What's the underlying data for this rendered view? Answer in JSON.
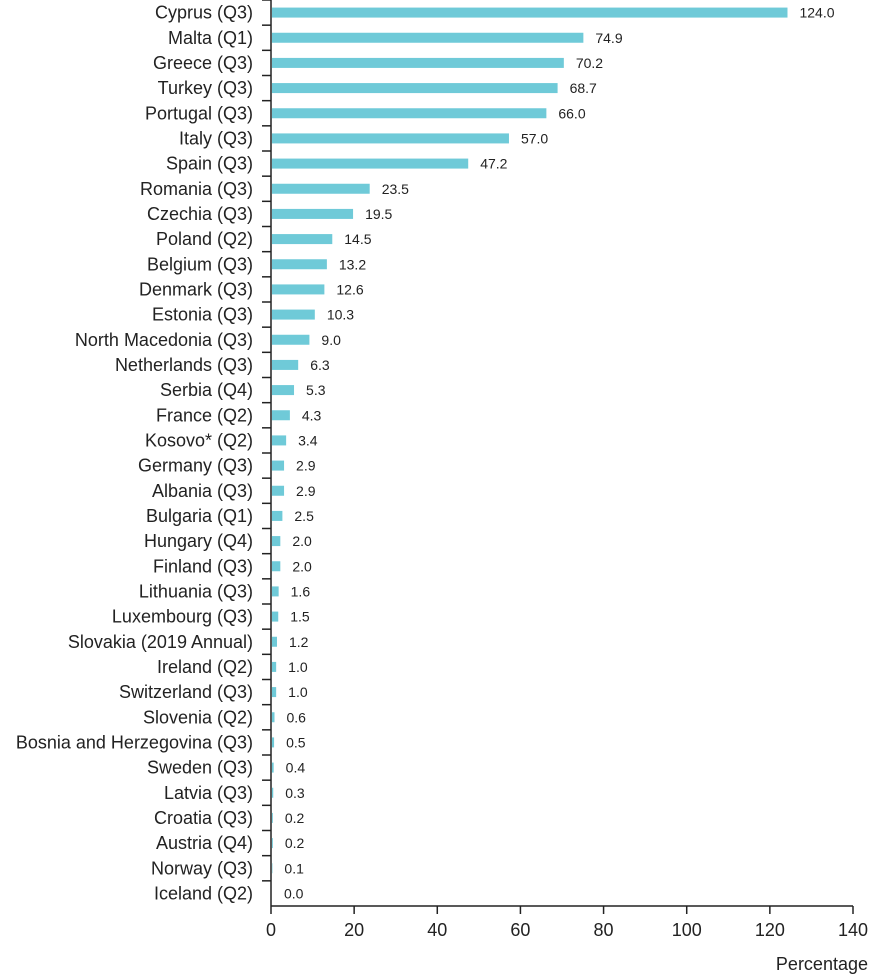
{
  "chart_data": {
    "type": "bar",
    "orientation": "horizontal",
    "title": "",
    "xlabel": "Percentage",
    "ylabel": "",
    "xlim": [
      0,
      140
    ],
    "xticks": [
      0,
      20,
      40,
      60,
      80,
      100,
      120,
      140
    ],
    "grid": false,
    "bar_color": "#6fcad8",
    "categories": [
      "Cyprus (Q3)",
      "Malta (Q1)",
      "Greece (Q3)",
      "Turkey (Q3)",
      "Portugal (Q3)",
      "Italy (Q3)",
      "Spain (Q3)",
      "Romania (Q3)",
      "Czechia (Q3)",
      "Poland (Q2)",
      "Belgium (Q3)",
      "Denmark (Q3)",
      "Estonia (Q3)",
      "North Macedonia (Q3)",
      "Netherlands (Q3)",
      "Serbia (Q4)",
      "France (Q2)",
      "Kosovo* (Q2)",
      "Germany (Q3)",
      "Albania (Q3)",
      "Bulgaria (Q1)",
      "Hungary (Q4)",
      "Finland (Q3)",
      "Lithuania (Q3)",
      "Luxembourg (Q3)",
      "Slovakia (2019 Annual)",
      "Ireland (Q2)",
      "Switzerland (Q3)",
      "Slovenia (Q2)",
      "Bosnia and Herzegovina (Q3)",
      "Sweden (Q3)",
      "Latvia (Q3)",
      "Croatia (Q3)",
      "Austria (Q4)",
      "Norway (Q3)",
      "Iceland (Q2)"
    ],
    "values": [
      124.0,
      74.9,
      70.2,
      68.7,
      66.0,
      57.0,
      47.2,
      23.5,
      19.5,
      14.5,
      13.2,
      12.6,
      10.3,
      9.0,
      6.3,
      5.3,
      4.3,
      3.4,
      2.9,
      2.9,
      2.5,
      2.0,
      2.0,
      1.6,
      1.5,
      1.2,
      1.0,
      1.0,
      0.6,
      0.5,
      0.4,
      0.3,
      0.2,
      0.2,
      0.1,
      0.0
    ],
    "value_labels": [
      "124.0",
      "74.9",
      "70.2",
      "68.7",
      "66.0",
      "57.0",
      "47.2",
      "23.5",
      "19.5",
      "14.5",
      "13.2",
      "12.6",
      "10.3",
      "9.0",
      "6.3",
      "5.3",
      "4.3",
      "3.4",
      "2.9",
      "2.9",
      "2.5",
      "2.0",
      "2.0",
      "1.6",
      "1.5",
      "1.2",
      "1.0",
      "1.0",
      "0.6",
      "0.5",
      "0.4",
      "0.3",
      "0.2",
      "0.2",
      "0.1",
      "0.0"
    ]
  }
}
